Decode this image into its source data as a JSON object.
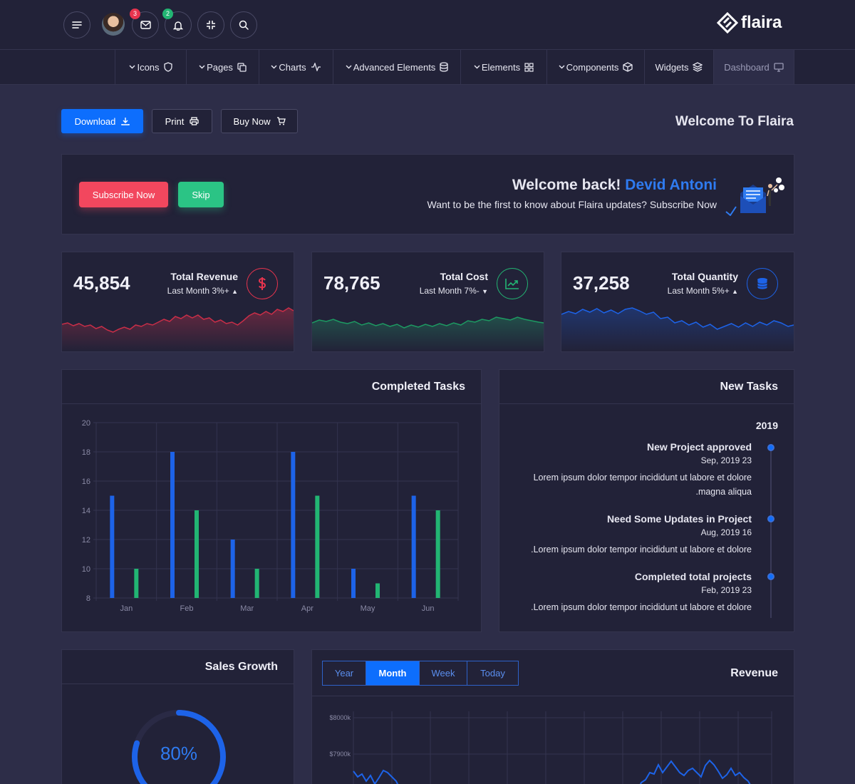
{
  "topbar": {
    "badges": {
      "mail": "3",
      "bell": "2"
    },
    "brand": "flaira"
  },
  "nav": [
    {
      "label": "Icons",
      "icon": "shield-icon"
    },
    {
      "label": "Pages",
      "icon": "copy-icon"
    },
    {
      "label": "Charts",
      "icon": "activity-icon"
    },
    {
      "label": "Advanced Elements",
      "icon": "database-icon"
    },
    {
      "label": "Elements",
      "icon": "grid-icon"
    },
    {
      "label": "Components",
      "icon": "box-icon"
    },
    {
      "label": "Widgets",
      "icon": "layers-icon"
    },
    {
      "label": "Dashboard",
      "icon": "monitor-icon"
    }
  ],
  "actions": {
    "download": "Download",
    "print": "Print",
    "buy": "Buy Now",
    "page_title": "Welcome To Flaira"
  },
  "banner": {
    "subscribe": "Subscribe Now",
    "skip": "Skip",
    "greeting": "Welcome back!",
    "name": "Devid Antoni",
    "message": "Want to be the first to know about Flaira updates? Subscribe Now"
  },
  "stats": [
    {
      "value": "45,854",
      "title": "Total Revenue",
      "sub": "Last Month 3%+",
      "trend": "up",
      "color": "#e8344e",
      "icon": "dollar-icon"
    },
    {
      "value": "78,765",
      "title": "Total Cost",
      "sub": "Last Month 7%-",
      "trend": "down",
      "color": "#22b573",
      "icon": "trending-up-icon"
    },
    {
      "value": "37,258",
      "title": "Total Quantity",
      "sub": "Last Month 5%+",
      "trend": "up",
      "color": "#1d63e8",
      "icon": "coins-icon"
    }
  ],
  "completed_tasks": {
    "title": "Completed Tasks",
    "chart_data": {
      "type": "bar",
      "categories": [
        "Jan",
        "Feb",
        "Mar",
        "Apr",
        "May",
        "Jun"
      ],
      "series": [
        {
          "values": [
            15,
            18,
            12,
            18,
            10,
            15
          ],
          "color": "#1d63e8"
        },
        {
          "values": [
            10,
            14,
            10,
            15,
            9,
            14
          ],
          "color": "#22b573"
        }
      ],
      "ylim": [
        8,
        20
      ],
      "yticks": [
        8,
        10,
        12,
        14,
        16,
        18,
        20
      ]
    }
  },
  "new_tasks": {
    "title": "New Tasks",
    "year": "2019",
    "items": [
      {
        "title": "New Project approved",
        "date": "Sep, 2019 23",
        "text": "Lorem ipsum dolor tempor incididunt ut labore et dolore",
        "text2": ".magna aliqua"
      },
      {
        "title": "Need Some Updates in Project",
        "date": "Aug, 2019 16",
        "text": ".Lorem ipsum dolor tempor incididunt ut labore et dolore",
        "text2": ""
      },
      {
        "title": "Completed total projects",
        "date": "Feb, 2019 23",
        "text": ".Lorem ipsum dolor tempor incididunt ut labore et dolore",
        "text2": ""
      }
    ]
  },
  "sales_growth": {
    "title": "Sales Growth",
    "percent": "80%",
    "progress": 0.8
  },
  "revenue": {
    "title": "Revenue",
    "tabs": [
      "Year",
      "Month",
      "Week",
      "Today"
    ],
    "active_tab": "Month",
    "y_labels": [
      "$8000k",
      "$7900k"
    ]
  }
}
